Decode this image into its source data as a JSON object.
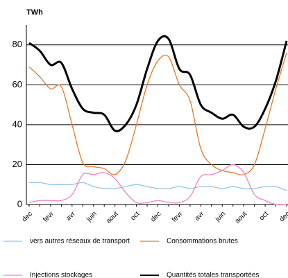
{
  "chart_data": {
    "type": "line",
    "title": "TWh",
    "categories": [
      "dec",
      null,
      "fevr",
      null,
      "avr",
      null,
      "juin",
      null,
      "aout",
      null,
      "oct",
      null,
      "dec",
      null,
      "fevr",
      null,
      "avr",
      null,
      "juin",
      null,
      "aout",
      null,
      "oct",
      null,
      "dec"
    ],
    "series": [
      {
        "name": "vers autres réseaux de transport",
        "color": "#8fc3ea",
        "values": [
          11,
          11,
          10,
          10,
          10,
          11,
          9,
          8,
          8,
          9,
          10,
          9,
          8,
          8,
          9,
          8,
          9,
          9,
          8,
          9,
          8,
          8,
          9,
          9,
          7
        ]
      },
      {
        "name": "Consommations brutes",
        "color": "#e87722",
        "values": [
          69,
          64,
          58,
          59,
          40,
          21,
          19,
          18,
          15,
          22,
          40,
          60,
          72,
          74,
          60,
          52,
          28,
          20,
          17,
          16,
          15,
          20,
          38,
          58,
          76
        ]
      },
      {
        "name": "Injections stockages",
        "color": "#f080c8",
        "values": [
          1,
          2,
          2,
          2,
          5,
          15,
          15,
          16,
          13,
          6,
          1,
          1,
          2,
          1,
          1,
          4,
          14,
          15,
          17,
          20,
          16,
          5,
          2,
          0,
          0
        ]
      },
      {
        "name": "Quantités totales transportées",
        "color": "#000000",
        "values": [
          81,
          77,
          70,
          71,
          58,
          48,
          46,
          45,
          37,
          40,
          50,
          68,
          82,
          83,
          68,
          65,
          50,
          46,
          43,
          45,
          39,
          39,
          48,
          62,
          82
        ]
      }
    ],
    "ylim": [
      0,
      90
    ],
    "yticks": [
      0,
      20,
      40,
      60,
      80
    ],
    "grid": true
  }
}
